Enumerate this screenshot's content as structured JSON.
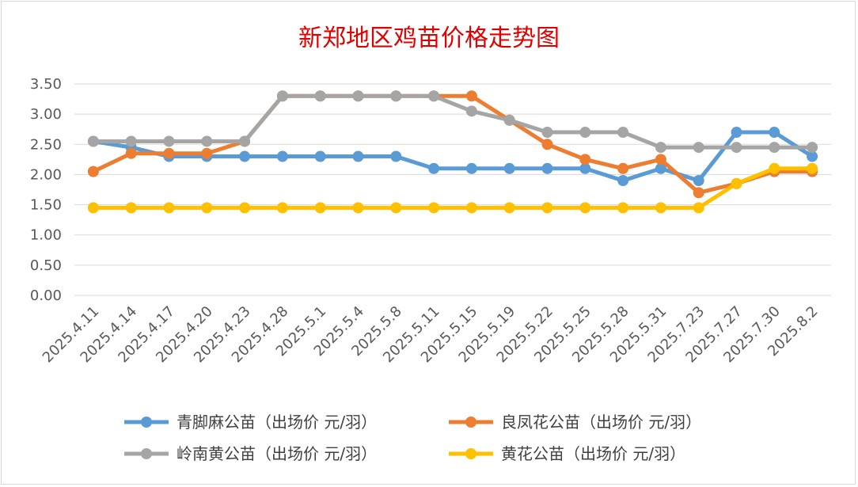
{
  "chart_data": {
    "type": "line",
    "title": "新郑地区鸡苗价格走势图",
    "xlabel": "",
    "ylabel": "",
    "ylim": [
      0,
      3.5
    ],
    "yticks": [
      "0.00",
      "0.50",
      "1.00",
      "1.50",
      "2.00",
      "2.50",
      "3.00",
      "3.50"
    ],
    "grid": true,
    "legend_position": "bottom",
    "categories": [
      "2025.4.11",
      "2025.4.14",
      "2025.4.17",
      "2025.4.20",
      "2025.4.23",
      "2025.4.28",
      "2025.5.1",
      "2025.5.4",
      "2025.5.8",
      "2025.5.11",
      "2025.5.15",
      "2025.5.19",
      "2025.5.22",
      "2025.5.25",
      "2025.5.28",
      "2025.5.31",
      "2025.7.23",
      "2025.7.27",
      "2025.7.30",
      "2025.8.2"
    ],
    "series": [
      {
        "name": "青脚麻公苗（出场价 元/羽）",
        "color": "#5b9bd5",
        "values": [
          2.55,
          2.45,
          2.3,
          2.3,
          2.3,
          2.3,
          2.3,
          2.3,
          2.3,
          2.1,
          2.1,
          2.1,
          2.1,
          2.1,
          1.9,
          2.1,
          1.9,
          2.7,
          2.7,
          2.3
        ]
      },
      {
        "name": "良凤花公苗（出场价 元/羽）",
        "color": "#ed7d31",
        "values": [
          2.05,
          2.35,
          2.35,
          2.35,
          2.55,
          3.3,
          3.3,
          3.3,
          3.3,
          3.3,
          3.3,
          2.9,
          2.5,
          2.25,
          2.1,
          2.25,
          1.7,
          1.85,
          2.05,
          2.05
        ]
      },
      {
        "name": "岭南黄公苗（出场价 元/羽）",
        "color": "#a5a5a5",
        "values": [
          2.55,
          2.55,
          2.55,
          2.55,
          2.55,
          3.3,
          3.3,
          3.3,
          3.3,
          3.3,
          3.05,
          2.9,
          2.7,
          2.7,
          2.7,
          2.45,
          2.45,
          2.45,
          2.45,
          2.45
        ]
      },
      {
        "name": "黄花公苗（出场价 元/羽）",
        "color": "#ffc000",
        "values": [
          1.45,
          1.45,
          1.45,
          1.45,
          1.45,
          1.45,
          1.45,
          1.45,
          1.45,
          1.45,
          1.45,
          1.45,
          1.45,
          1.45,
          1.45,
          1.45,
          1.45,
          1.85,
          2.1,
          2.1
        ]
      }
    ]
  }
}
